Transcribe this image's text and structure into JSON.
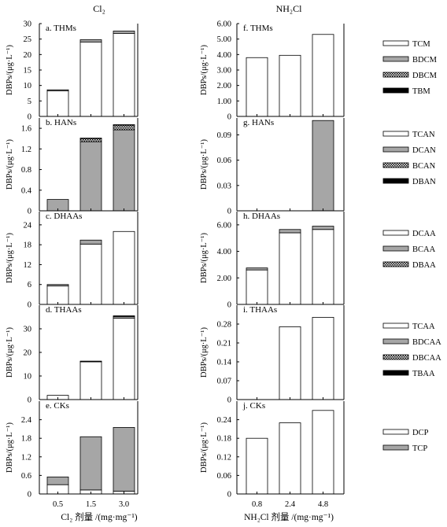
{
  "header": {
    "left_title": "Cl₂",
    "right_title": "NH₂Cl"
  },
  "x_axis": {
    "left_categories": [
      "0.5",
      "1.5",
      "3.0"
    ],
    "right_categories": [
      "0.8",
      "2.4",
      "4.8"
    ],
    "left_label": "Cl₂ 剂量 /(mg·mg⁻¹)",
    "right_label": "NH₂Cl 剂量 /(mg·mg⁻¹)"
  },
  "ylabel": "DBPs/(μg·L⁻¹)",
  "colors": {
    "white": "#ffffff",
    "gray": "#a6a6a6",
    "black": "#000000",
    "edge": "#000000"
  },
  "chart_data": [
    {
      "type": "bar",
      "stacked": true,
      "title": "a. THMs",
      "categories": [
        "0.5",
        "1.5",
        "3.0"
      ],
      "ylim": [
        0,
        30
      ],
      "yticks": [
        "0",
        "5",
        "10",
        "15",
        "20",
        "25",
        "30"
      ],
      "yticks_v": [
        0,
        5,
        10,
        15,
        20,
        25,
        30
      ],
      "series": [
        {
          "name": "TCM",
          "fill": "white",
          "values": [
            8.3,
            24.0,
            26.8
          ]
        },
        {
          "name": "BDCM",
          "fill": "gray",
          "values": [
            0.3,
            0.8,
            0.8
          ]
        },
        {
          "name": "DBCM",
          "fill": "dots",
          "values": [
            0,
            0,
            0
          ]
        },
        {
          "name": "TBM",
          "fill": "black",
          "values": [
            0,
            0,
            0
          ]
        }
      ]
    },
    {
      "type": "bar",
      "stacked": true,
      "title": "b. HANs",
      "categories": [
        "0.5",
        "1.5",
        "3.0"
      ],
      "ylim": [
        0,
        1.8
      ],
      "yticks": [
        "0",
        "0.4",
        "0.8",
        "1.2",
        "1.6"
      ],
      "yticks_v": [
        0,
        0.4,
        0.8,
        1.2,
        1.6
      ],
      "series": [
        {
          "name": "TCAN",
          "fill": "white",
          "values": [
            0,
            0,
            0
          ]
        },
        {
          "name": "DCAN",
          "fill": "gray",
          "values": [
            0.22,
            1.34,
            1.57
          ]
        },
        {
          "name": "BCAN",
          "fill": "dots",
          "values": [
            0,
            0.06,
            0.09
          ]
        },
        {
          "name": "DBAN",
          "fill": "black",
          "values": [
            0,
            0.01,
            0.01
          ]
        }
      ]
    },
    {
      "type": "bar",
      "stacked": true,
      "title": "c. DHAAs",
      "categories": [
        "0.5",
        "1.5",
        "3.0"
      ],
      "ylim": [
        0,
        28
      ],
      "yticks": [
        "0",
        "6",
        "12",
        "18",
        "24"
      ],
      "yticks_v": [
        0,
        6,
        12,
        18,
        24
      ],
      "series": [
        {
          "name": "DCAA",
          "fill": "white",
          "values": [
            5.6,
            18.2,
            22.0
          ]
        },
        {
          "name": "BCAA",
          "fill": "gray",
          "values": [
            0.4,
            1.2,
            0
          ]
        },
        {
          "name": "DBAA",
          "fill": "dots",
          "values": [
            0,
            0,
            0
          ]
        }
      ]
    },
    {
      "type": "bar",
      "stacked": true,
      "title": "d. THAAs",
      "categories": [
        "0.5",
        "1.5",
        "3.0"
      ],
      "ylim": [
        0,
        40
      ],
      "yticks": [
        "0",
        "10",
        "20",
        "30"
      ],
      "yticks_v": [
        0,
        10,
        20,
        30
      ],
      "series": [
        {
          "name": "TCAA",
          "fill": "white",
          "values": [
            1.8,
            16.0,
            34.5
          ]
        },
        {
          "name": "BDCAA",
          "fill": "gray",
          "values": [
            0,
            0.2,
            0.7
          ]
        },
        {
          "name": "DBCAA",
          "fill": "dots",
          "values": [
            0,
            0,
            0
          ]
        },
        {
          "name": "TBAA",
          "fill": "black",
          "values": [
            0,
            0.1,
            0.3
          ]
        }
      ]
    },
    {
      "type": "bar",
      "stacked": true,
      "title": "e. CKs",
      "categories": [
        "0.5",
        "1.5",
        "3.0"
      ],
      "ylim": [
        0,
        3.0
      ],
      "yticks": [
        "0",
        "0.6",
        "1.2",
        "1.8",
        "2.4"
      ],
      "yticks_v": [
        0,
        0.6,
        1.2,
        1.8,
        2.4
      ],
      "series": [
        {
          "name": "DCP",
          "fill": "white",
          "values": [
            0.3,
            0.13,
            0.09
          ]
        },
        {
          "name": "TCP",
          "fill": "gray",
          "values": [
            0.25,
            1.72,
            2.06
          ]
        }
      ]
    },
    {
      "type": "bar",
      "stacked": true,
      "title": "f. THMs",
      "categories": [
        "0.8",
        "2.4",
        "4.8"
      ],
      "ylim": [
        0,
        6.0
      ],
      "yticks": [
        "0",
        "1.00",
        "2.00",
        "3.00",
        "4.00",
        "5.00",
        "6.00"
      ],
      "yticks_v": [
        0,
        1,
        2,
        3,
        4,
        5,
        6
      ],
      "series": [
        {
          "name": "TCM",
          "fill": "white",
          "values": [
            3.8,
            3.95,
            5.3
          ]
        }
      ]
    },
    {
      "type": "bar",
      "stacked": true,
      "title": "g. HANs",
      "categories": [
        "0.8",
        "2.4",
        "4.8"
      ],
      "ylim": [
        0,
        0.11
      ],
      "yticks": [
        "0",
        "0.03",
        "0.06",
        "0.09"
      ],
      "yticks_v": [
        0,
        0.03,
        0.06,
        0.09
      ],
      "series": [
        {
          "name": "DCAN",
          "fill": "gray",
          "values": [
            0,
            0,
            0.107
          ]
        }
      ]
    },
    {
      "type": "bar",
      "stacked": true,
      "title": "h. DHAAs",
      "categories": [
        "0.8",
        "2.4",
        "4.8"
      ],
      "ylim": [
        0,
        7.0
      ],
      "yticks": [
        "0",
        "2.00",
        "4.00",
        "6.00"
      ],
      "yticks_v": [
        0,
        2,
        4,
        6
      ],
      "series": [
        {
          "name": "DCAA",
          "fill": "white",
          "values": [
            2.6,
            5.4,
            5.65
          ]
        },
        {
          "name": "BCAA",
          "fill": "gray",
          "values": [
            0.15,
            0.25,
            0.25
          ]
        }
      ]
    },
    {
      "type": "bar",
      "stacked": true,
      "title": "i. THAAs",
      "categories": [
        "0.8",
        "2.4",
        "4.8"
      ],
      "ylim": [
        0,
        0.35
      ],
      "yticks": [
        "0",
        "0.07",
        "0.14",
        "0.21",
        "0.28"
      ],
      "yticks_v": [
        0,
        0.07,
        0.14,
        0.21,
        0.28
      ],
      "series": [
        {
          "name": "TCAA",
          "fill": "white",
          "values": [
            0,
            0.27,
            0.305
          ]
        }
      ]
    },
    {
      "type": "bar",
      "stacked": true,
      "title": "j. CKs",
      "categories": [
        "0.8",
        "2.4",
        "4.8"
      ],
      "ylim": [
        0,
        0.3
      ],
      "yticks": [
        "0",
        "0.06",
        "0.12",
        "0.18",
        "0.24"
      ],
      "yticks_v": [
        0,
        0.06,
        0.12,
        0.18,
        0.24
      ],
      "series": [
        {
          "name": "DCP",
          "fill": "white",
          "values": [
            0.18,
            0.23,
            0.27
          ]
        }
      ]
    }
  ],
  "legends": [
    {
      "items": [
        {
          "label": "TCM",
          "fill": "white"
        },
        {
          "label": "BDCM",
          "fill": "gray"
        },
        {
          "label": "DBCM",
          "fill": "dots"
        },
        {
          "label": "TBM",
          "fill": "black"
        }
      ]
    },
    {
      "items": [
        {
          "label": "TCAN",
          "fill": "white"
        },
        {
          "label": "DCAN",
          "fill": "gray"
        },
        {
          "label": "BCAN",
          "fill": "dots"
        },
        {
          "label": "DBAN",
          "fill": "black"
        }
      ]
    },
    {
      "items": [
        {
          "label": "DCAA",
          "fill": "white"
        },
        {
          "label": "BCAA",
          "fill": "gray"
        },
        {
          "label": "DBAA",
          "fill": "dots"
        }
      ]
    },
    {
      "items": [
        {
          "label": "TCAA",
          "fill": "white"
        },
        {
          "label": "BDCAA",
          "fill": "gray"
        },
        {
          "label": "DBCAA",
          "fill": "dots"
        },
        {
          "label": "TBAA",
          "fill": "black"
        }
      ]
    },
    {
      "items": [
        {
          "label": "DCP",
          "fill": "white"
        },
        {
          "label": "TCP",
          "fill": "gray"
        }
      ]
    }
  ]
}
